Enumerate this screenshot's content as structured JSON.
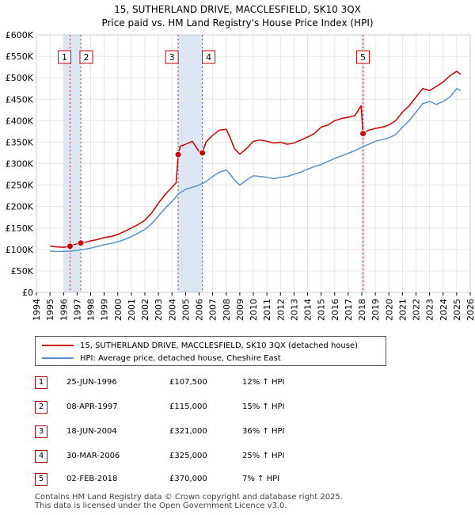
{
  "title_line1": "15, SUTHERLAND DRIVE, MACCLESFIELD, SK10 3QX",
  "title_line2": "Price paid vs. HM Land Registry's House Price Index (HPI)",
  "colors": {
    "property": "#cc0000",
    "hpi": "#5b8fcc",
    "shade": "#dde6f5",
    "marker_border": "#cc0000"
  },
  "legend": {
    "property": "15, SUTHERLAND DRIVE, MACCLESFIELD, SK10 3QX (detached house)",
    "hpi": "HPI: Average price, detached house, Cheshire East"
  },
  "transactions": [
    {
      "num": "1",
      "date": "25-JUN-1996",
      "price": "£107,500",
      "hpi": "12% ↑ HPI"
    },
    {
      "num": "2",
      "date": "08-APR-1997",
      "price": "£115,000",
      "hpi": "15% ↑ HPI"
    },
    {
      "num": "3",
      "date": "18-JUN-2004",
      "price": "£321,000",
      "hpi": "36% ↑ HPI"
    },
    {
      "num": "4",
      "date": "30-MAR-2006",
      "price": "£325,000",
      "hpi": "25% ↑ HPI"
    },
    {
      "num": "5",
      "date": "02-FEB-2018",
      "price": "£370,000",
      "hpi": "7% ↑ HPI"
    }
  ],
  "footer_line1": "Contains HM Land Registry data © Crown copyright and database right 2025.",
  "footer_line2": "This data is licensed under the Open Government Licence v3.0.",
  "chart_data": {
    "type": "line",
    "title": "15, SUTHERLAND DRIVE, MACCLESFIELD, SK10 3QX",
    "subtitle": "Price paid vs. HM Land Registry's House Price Index (HPI)",
    "xlim": [
      1994,
      2026
    ],
    "ylim": [
      0,
      600000
    ],
    "x_ticks": [
      "1994",
      "1995",
      "1996",
      "1997",
      "1998",
      "1999",
      "2000",
      "2001",
      "2002",
      "2003",
      "2004",
      "2005",
      "2006",
      "2007",
      "2008",
      "2009",
      "2010",
      "2011",
      "2012",
      "2013",
      "2014",
      "2015",
      "2016",
      "2017",
      "2018",
      "2019",
      "2020",
      "2021",
      "2022",
      "2023",
      "2024",
      "2025",
      "2026"
    ],
    "y_ticks": [
      {
        "v": 0,
        "label": "£0"
      },
      {
        "v": 50000,
        "label": "£50K"
      },
      {
        "v": 100000,
        "label": "£100K"
      },
      {
        "v": 150000,
        "label": "£150K"
      },
      {
        "v": 200000,
        "label": "£200K"
      },
      {
        "v": 250000,
        "label": "£250K"
      },
      {
        "v": 300000,
        "label": "£300K"
      },
      {
        "v": 350000,
        "label": "£350K"
      },
      {
        "v": 400000,
        "label": "£400K"
      },
      {
        "v": 450000,
        "label": "£450K"
      },
      {
        "v": 500000,
        "label": "£500K"
      },
      {
        "v": 550000,
        "label": "£550K"
      },
      {
        "v": 600000,
        "label": "£600K"
      }
    ],
    "grid": true,
    "shaded_ranges": [
      [
        1996.0,
        1997.3
      ],
      [
        2004.4,
        2006.3
      ],
      [
        2018.0,
        2018.2
      ]
    ],
    "sales": [
      {
        "label": "1",
        "x": 1996.48,
        "y": 107500
      },
      {
        "label": "2",
        "x": 1997.27,
        "y": 115000
      },
      {
        "label": "3",
        "x": 2004.46,
        "y": 321000
      },
      {
        "label": "4",
        "x": 2006.24,
        "y": 325000
      },
      {
        "label": "5",
        "x": 2018.09,
        "y": 370000
      }
    ],
    "series": [
      {
        "name": "15, SUTHERLAND DRIVE, MACCLESFIELD, SK10 3QX (detached house)",
        "x": [
          1995.0,
          1995.5,
          1996.0,
          1996.48,
          1996.6,
          1997.27,
          1997.5,
          1998.0,
          1998.5,
          1999.0,
          1999.5,
          2000.0,
          2000.5,
          2001.0,
          2001.5,
          2002.0,
          2002.5,
          2003.0,
          2003.5,
          2004.0,
          2004.3,
          2004.46,
          2004.6,
          2005.0,
          2005.5,
          2006.0,
          2006.24,
          2006.5,
          2007.0,
          2007.5,
          2008.0,
          2008.3,
          2008.6,
          2009.0,
          2009.5,
          2010.0,
          2010.5,
          2011.0,
          2011.5,
          2012.0,
          2012.5,
          2013.0,
          2013.5,
          2014.0,
          2014.5,
          2015.0,
          2015.5,
          2016.0,
          2016.5,
          2017.0,
          2017.5,
          2017.95,
          2018.09,
          2018.5,
          2019.0,
          2019.5,
          2020.0,
          2020.5,
          2021.0,
          2021.5,
          2022.0,
          2022.5,
          2023.0,
          2023.5,
          2024.0,
          2024.5,
          2025.0,
          2025.3
        ],
        "values": [
          108000,
          106000,
          105000,
          107500,
          110000,
          115000,
          116000,
          120000,
          123000,
          128000,
          130000,
          135000,
          142000,
          150000,
          158000,
          168000,
          185000,
          208000,
          228000,
          245000,
          255000,
          321000,
          340000,
          345000,
          352000,
          328000,
          325000,
          350000,
          366000,
          378000,
          380000,
          360000,
          335000,
          322000,
          335000,
          352000,
          355000,
          352000,
          348000,
          350000,
          345000,
          348000,
          355000,
          362000,
          370000,
          385000,
          390000,
          400000,
          405000,
          408000,
          412000,
          435000,
          370000,
          378000,
          382000,
          385000,
          390000,
          400000,
          420000,
          435000,
          455000,
          475000,
          470000,
          480000,
          490000,
          505000,
          515000,
          508000
        ]
      },
      {
        "name": "HPI: Average price, detached house, Cheshire East",
        "x": [
          1995.0,
          1995.5,
          1996.0,
          1996.5,
          1997.0,
          1997.5,
          1998.0,
          1998.5,
          1999.0,
          1999.5,
          2000.0,
          2000.5,
          2001.0,
          2001.5,
          2002.0,
          2002.5,
          2003.0,
          2003.5,
          2004.0,
          2004.5,
          2005.0,
          2005.5,
          2006.0,
          2006.5,
          2007.0,
          2007.5,
          2008.0,
          2008.3,
          2008.6,
          2009.0,
          2009.5,
          2010.0,
          2010.5,
          2011.0,
          2011.5,
          2012.0,
          2012.5,
          2013.0,
          2013.5,
          2014.0,
          2014.5,
          2015.0,
          2015.5,
          2016.0,
          2016.5,
          2017.0,
          2017.5,
          2018.0,
          2018.5,
          2019.0,
          2019.5,
          2020.0,
          2020.5,
          2021.0,
          2021.5,
          2022.0,
          2022.5,
          2023.0,
          2023.5,
          2024.0,
          2024.5,
          2025.0,
          2025.3
        ],
        "values": [
          96000,
          95000,
          95500,
          96000,
          98000,
          100000,
          103000,
          107000,
          111000,
          114000,
          118000,
          123000,
          130000,
          138000,
          147000,
          160000,
          178000,
          196000,
          212000,
          230000,
          240000,
          245000,
          250000,
          258000,
          270000,
          280000,
          285000,
          275000,
          262000,
          250000,
          262000,
          272000,
          270000,
          268000,
          265000,
          268000,
          270000,
          275000,
          280000,
          287000,
          293000,
          298000,
          305000,
          312000,
          318000,
          324000,
          330000,
          338000,
          345000,
          352000,
          356000,
          360000,
          368000,
          385000,
          400000,
          420000,
          440000,
          445000,
          438000,
          445000,
          455000,
          475000,
          470000
        ]
      }
    ]
  }
}
